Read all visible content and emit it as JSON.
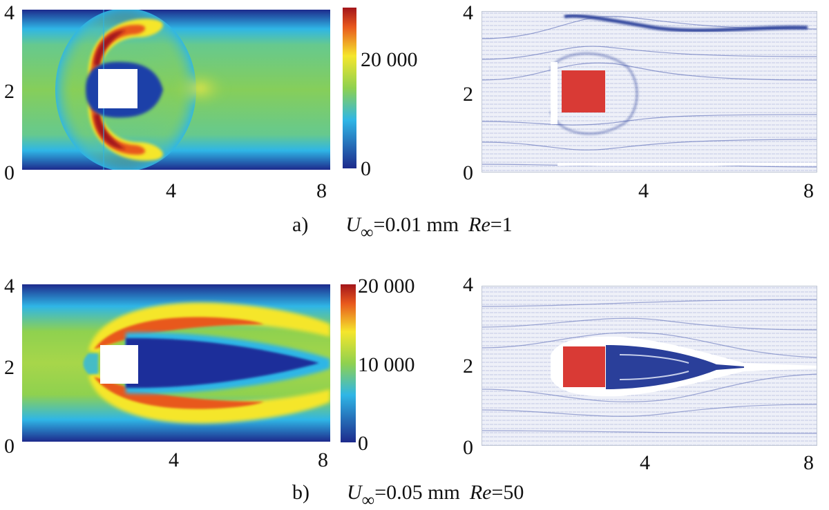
{
  "figure": {
    "panel_a": {
      "label": "a)",
      "caption_var": "U",
      "caption_sub": "∞",
      "caption_value": "=0.01 mm",
      "caption_re_label": "Re",
      "caption_re_value": "=1",
      "left": {
        "y_ticks": [
          "4",
          "2",
          "0"
        ],
        "x_ticks": [
          "4",
          "8"
        ],
        "colorbar_ticks": [
          "20 000",
          "0"
        ],
        "colormap": [
          "#1d2a8c",
          "#2fb6e6",
          "#8fd14f",
          "#f5e62c",
          "#e8581d",
          "#a3151a"
        ]
      },
      "right": {
        "y_ticks": [
          "4",
          "2",
          "0"
        ],
        "x_ticks": [
          "4",
          "8"
        ]
      }
    },
    "panel_b": {
      "label": "b)",
      "caption_var": "U",
      "caption_sub": "∞",
      "caption_value": "=0.05 mm",
      "caption_re_label": "Re",
      "caption_re_value": "=50",
      "left": {
        "y_ticks": [
          "4",
          "2",
          "0"
        ],
        "x_ticks": [
          "4",
          "8"
        ],
        "colorbar_ticks": [
          "20 000",
          "10 000",
          "0"
        ],
        "colormap": [
          "#1d2a8c",
          "#2fb6e6",
          "#8fd14f",
          "#f5e62c",
          "#e8581d",
          "#a3151a"
        ]
      },
      "right": {
        "y_ticks": [
          "4",
          "2",
          "0"
        ],
        "x_ticks": [
          "4",
          "8"
        ]
      }
    },
    "colors": {
      "obstacle_fill": "#d93a35",
      "vector_blue": "#2a3f9a",
      "vector_light": "#c7cfea"
    }
  }
}
